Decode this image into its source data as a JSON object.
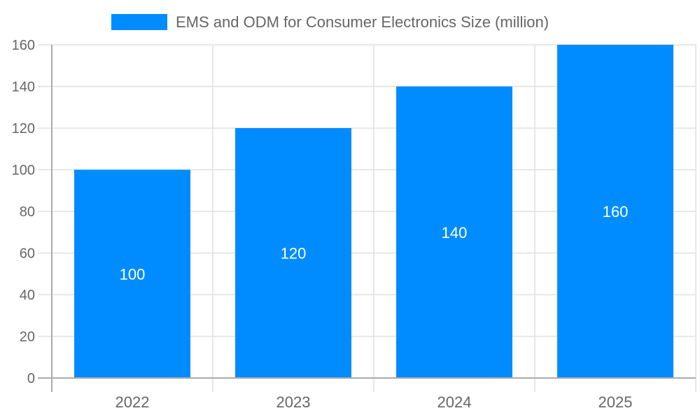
{
  "chart_data": {
    "type": "bar",
    "title": "",
    "xlabel": "",
    "ylabel": "",
    "categories": [
      "2022",
      "2023",
      "2024",
      "2025"
    ],
    "series": [
      {
        "name": "EMS and ODM for Consumer Electronics Size (million)",
        "values": [
          100,
          120,
          140,
          160
        ],
        "color": "#008cff"
      }
    ],
    "data_labels": [
      "100",
      "120",
      "140",
      "160"
    ],
    "ylim": [
      0,
      160
    ],
    "yticks": [
      "0",
      "20",
      "40",
      "60",
      "80",
      "100",
      "120",
      "140",
      "160"
    ],
    "grid": true,
    "legend_position": "top"
  }
}
